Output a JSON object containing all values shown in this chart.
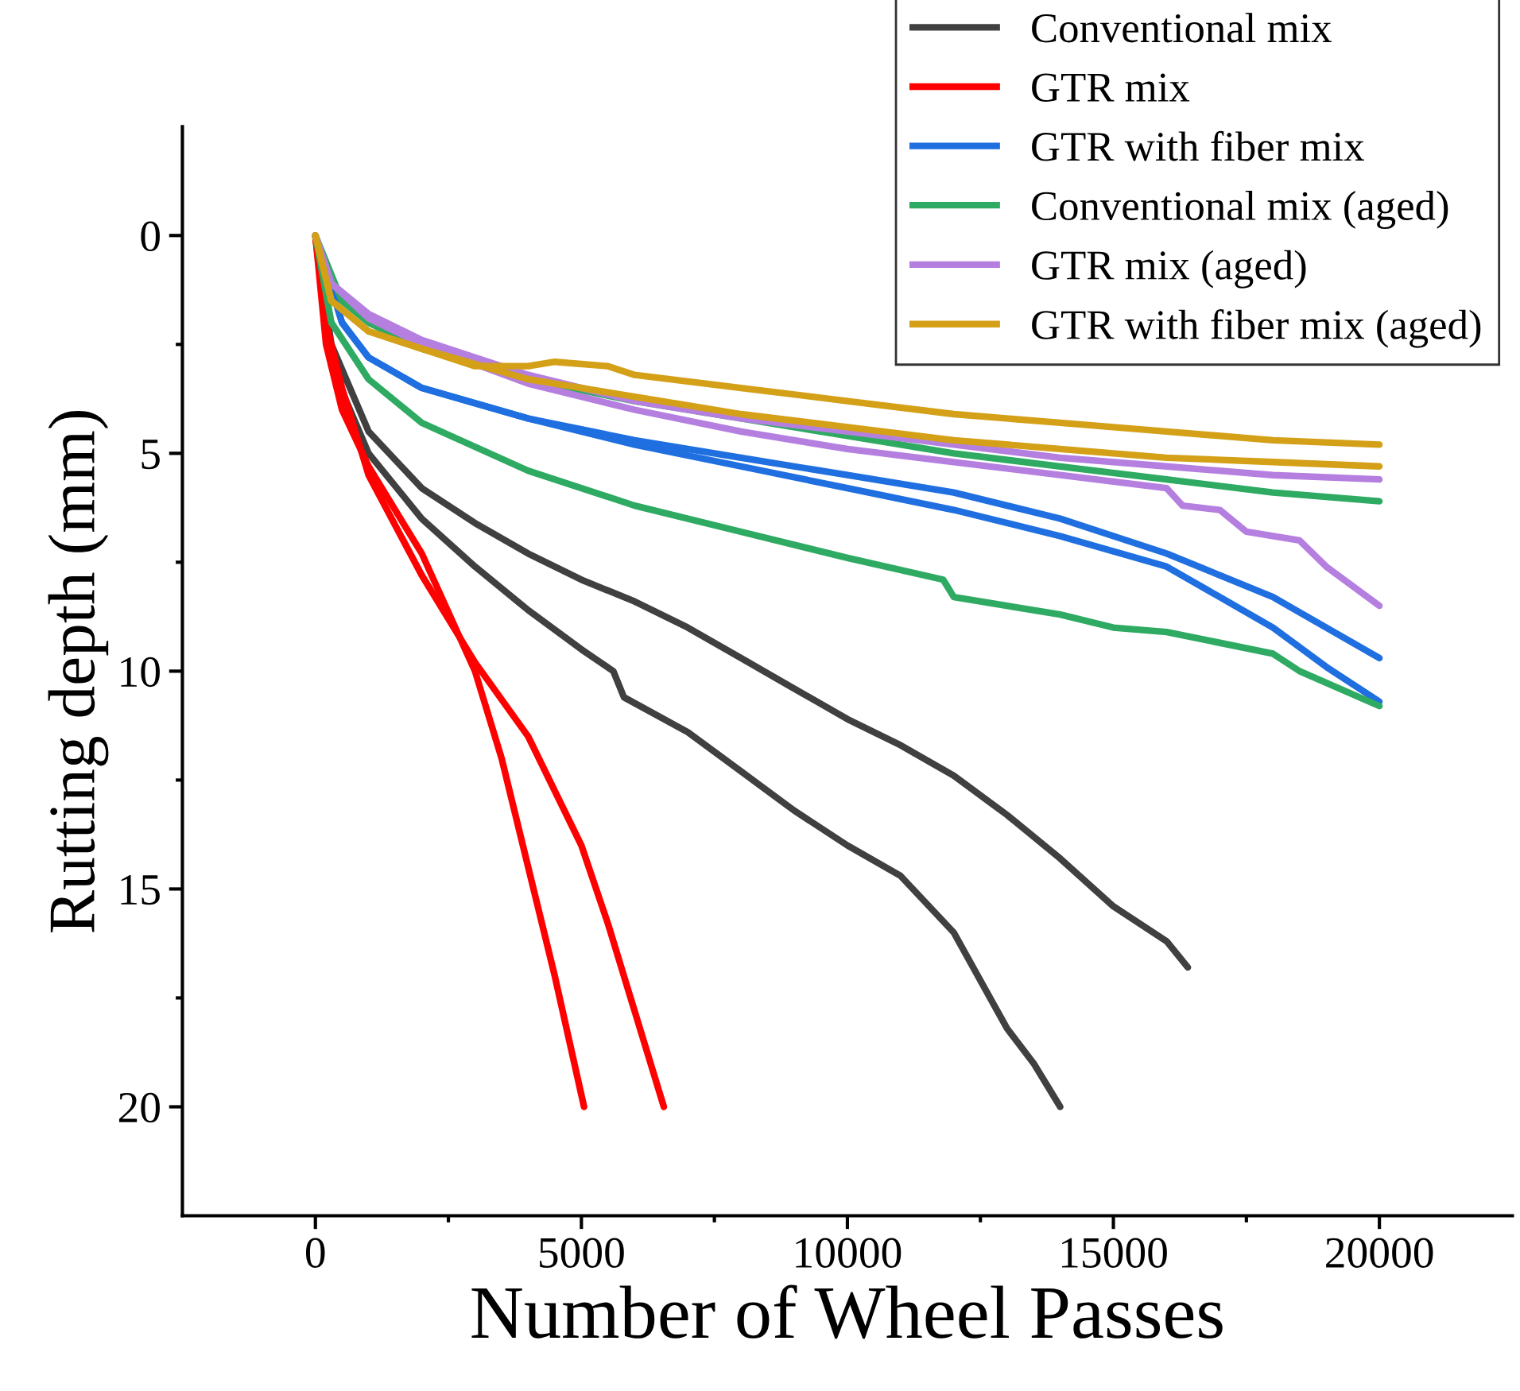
{
  "chart_data": {
    "type": "line",
    "xlabel": "Number of Wheel Passes",
    "ylabel": "Rutting depth (mm)",
    "xlim": [
      -2500,
      22500
    ],
    "xticks": [
      0,
      5000,
      10000,
      15000,
      20000
    ],
    "ylim": [
      22.5,
      -2.5
    ],
    "yticks": [
      0,
      5,
      10,
      15,
      20
    ],
    "grid": false,
    "legend": "top right",
    "marker": "none",
    "line_style": "solid",
    "series": [
      {
        "name": "Conventional mix",
        "color": "#404040",
        "x": [
          0,
          300,
          1000,
          2000,
          3000,
          4000,
          5000,
          6000,
          7000,
          8000,
          9000,
          10000,
          11000,
          12000,
          13000,
          14000,
          15000,
          16000,
          16400
        ],
        "values": [
          0,
          2.5,
          4.5,
          5.8,
          6.6,
          7.3,
          7.9,
          8.4,
          9,
          9.7,
          10.4,
          11.1,
          11.7,
          12.4,
          13.3,
          14.3,
          15.4,
          16.2,
          16.8
        ]
      },
      {
        "color": "#404040",
        "x": [
          0,
          300,
          1000,
          2000,
          3000,
          4000,
          5000,
          5600,
          5800,
          7000,
          8000,
          9000,
          10000,
          11000,
          12000,
          13000,
          13500,
          14000
        ],
        "values": [
          0,
          3,
          5,
          6.5,
          7.6,
          8.6,
          9.5,
          10,
          10.6,
          11.4,
          12.3,
          13.2,
          14,
          14.7,
          16,
          18.2,
          19,
          20
        ]
      },
      {
        "name": "GTR mix",
        "color": "#ff0000",
        "x": [
          0,
          200,
          500,
          1000,
          2000,
          3000,
          3500,
          4000,
          4500,
          5050
        ],
        "values": [
          0,
          2.5,
          4,
          5.3,
          7.3,
          10,
          12,
          14.5,
          17,
          20
        ]
      },
      {
        "color": "#ff0000",
        "x": [
          0,
          200,
          500,
          1000,
          2000,
          3000,
          4000,
          5000,
          5500,
          6000,
          6550
        ],
        "values": [
          0,
          2,
          3.5,
          5.5,
          7.8,
          9.8,
          11.5,
          14,
          15.8,
          17.8,
          20
        ]
      },
      {
        "name": "GTR with fiber mix",
        "color": "#1f6fe0",
        "x": [
          0,
          500,
          1000,
          2000,
          4000,
          6000,
          8000,
          10000,
          12000,
          14000,
          16000,
          18000,
          20000
        ],
        "values": [
          0,
          2,
          2.8,
          3.5,
          4.2,
          4.7,
          5.1,
          5.5,
          5.9,
          6.5,
          7.3,
          8.3,
          9.7
        ]
      },
      {
        "color": "#1f6fe0",
        "x": [
          0,
          500,
          1000,
          2000,
          4000,
          6000,
          8000,
          10000,
          12000,
          14000,
          16000,
          17000,
          18000,
          19000,
          20000
        ],
        "values": [
          0,
          2,
          2.8,
          3.5,
          4.2,
          4.8,
          5.3,
          5.8,
          6.3,
          6.9,
          7.6,
          8.3,
          9,
          9.9,
          10.7
        ]
      },
      {
        "name": "Conventional mix (aged)",
        "color": "#2eaa62",
        "x": [
          0,
          500,
          1000,
          2000,
          4000,
          6000,
          8000,
          10000,
          12000,
          14000,
          16000,
          18000,
          20000
        ],
        "values": [
          0,
          1.5,
          2,
          2.6,
          3.3,
          3.8,
          4.2,
          4.6,
          5,
          5.3,
          5.6,
          5.9,
          6.1
        ]
      },
      {
        "color": "#2eaa62",
        "x": [
          0,
          300,
          1000,
          2000,
          4000,
          6000,
          8000,
          10000,
          11800,
          12000,
          14000,
          15000,
          16000,
          18000,
          18500,
          20000
        ],
        "values": [
          0,
          2,
          3.3,
          4.3,
          5.4,
          6.2,
          6.8,
          7.4,
          7.9,
          8.3,
          8.7,
          9,
          9.1,
          9.6,
          10,
          10.8
        ]
      },
      {
        "name": "GTR mix (aged)",
        "color": "#b57fe0",
        "x": [
          0,
          300,
          1000,
          2000,
          4000,
          6000,
          8000,
          10000,
          12000,
          14000,
          16000,
          18000,
          20000
        ],
        "values": [
          0,
          1.1,
          1.8,
          2.4,
          3.2,
          3.8,
          4.2,
          4.5,
          4.8,
          5.1,
          5.3,
          5.5,
          5.6
        ]
      },
      {
        "color": "#b57fe0",
        "x": [
          0,
          300,
          1000,
          2000,
          4000,
          6000,
          8000,
          10000,
          12000,
          14000,
          16000,
          16300,
          17000,
          17500,
          18500,
          19000,
          20000
        ],
        "values": [
          0,
          1.1,
          1.9,
          2.5,
          3.4,
          4,
          4.5,
          4.9,
          5.2,
          5.5,
          5.8,
          6.2,
          6.3,
          6.8,
          7,
          7.6,
          8.5
        ]
      },
      {
        "name": "GTR with fiber mix (aged)",
        "color": "#d4a017",
        "x": [
          0,
          300,
          1000,
          2000,
          3000,
          4000,
          4500,
          5500,
          6000,
          8000,
          10000,
          12000,
          14000,
          16000,
          18000,
          20000
        ],
        "values": [
          0,
          1.5,
          2.2,
          2.6,
          3,
          3,
          2.9,
          3,
          3.2,
          3.5,
          3.8,
          4.1,
          4.3,
          4.5,
          4.7,
          4.8
        ]
      },
      {
        "color": "#d4a017",
        "x": [
          0,
          300,
          1000,
          2000,
          4000,
          6000,
          8000,
          10000,
          12000,
          14000,
          16000,
          18000,
          20000
        ],
        "values": [
          0,
          1.5,
          2.2,
          2.6,
          3.3,
          3.7,
          4.1,
          4.4,
          4.7,
          4.9,
          5.1,
          5.2,
          5.3
        ]
      }
    ]
  }
}
